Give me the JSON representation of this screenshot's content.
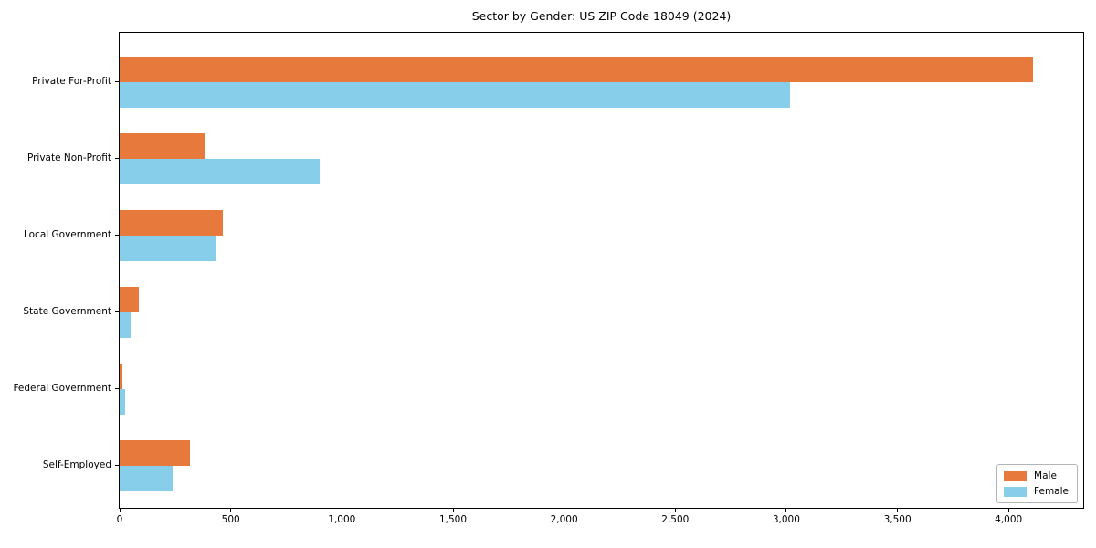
{
  "title": "Sector by Gender: US ZIP Code 18049 (2024)",
  "chart_data": {
    "type": "bar",
    "orientation": "horizontal",
    "title": "Sector by Gender: US ZIP Code 18049 (2024)",
    "xlabel": "",
    "ylabel": "",
    "categories": [
      "Private For-Profit",
      "Private Non-Profit",
      "Local Government",
      "State Government",
      "Federal Government",
      "Self-Employed"
    ],
    "series": [
      {
        "name": "Male",
        "color": "#E8793D",
        "values": [
          4110,
          380,
          465,
          88,
          13,
          318
        ]
      },
      {
        "name": "Female",
        "color": "#87CEEB",
        "values": [
          3015,
          900,
          430,
          48,
          26,
          238
        ]
      }
    ],
    "xlim": [
      0,
      4336
    ],
    "xticks": [
      0,
      500,
      1000,
      1500,
      2000,
      2500,
      3000,
      3500,
      4000
    ],
    "xtick_labels": [
      "0",
      "500",
      "1,000",
      "1,500",
      "2,000",
      "2,500",
      "3,000",
      "3,500",
      "4,000"
    ],
    "grid": false,
    "legend_position": "lower right",
    "colors": {
      "male": "#E8793D",
      "female": "#87CEEB",
      "spine": "#000000",
      "background": "#ffffff"
    }
  }
}
